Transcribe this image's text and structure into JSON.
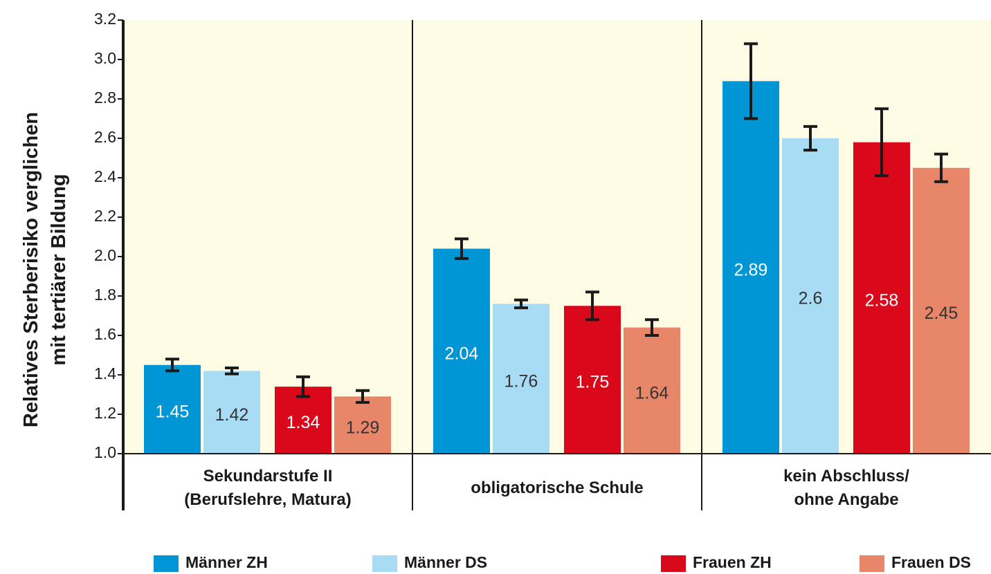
{
  "chart_data": {
    "type": "bar",
    "ylabel": "Relatives Sterberisiko verglichen\nmit tertiärer Bildung",
    "categories": [
      "Sekundarstufe II\n(Berufslehre, Matura)",
      "obligatorische Schule",
      "kein Abschluss/\nohne Angabe"
    ],
    "series": [
      {
        "name": "Männer ZH",
        "color": "#0096d6",
        "label_color": "#ffffff",
        "values": [
          1.45,
          2.04,
          2.89
        ],
        "errors": [
          0.03,
          0.05,
          0.19
        ]
      },
      {
        "name": "Männer DS",
        "color": "#a8dcf4",
        "label_color": "#333333",
        "values": [
          1.42,
          1.76,
          2.6
        ],
        "errors": [
          0.015,
          0.02,
          0.06
        ]
      },
      {
        "name": "Frauen ZH",
        "color": "#d9091b",
        "label_color": "#ffffff",
        "values": [
          1.34,
          1.75,
          2.58
        ],
        "errors": [
          0.05,
          0.07,
          0.17
        ]
      },
      {
        "name": "Frauen DS",
        "color": "#e8866a",
        "label_color": "#333333",
        "values": [
          1.29,
          1.64,
          2.45
        ],
        "errors": [
          0.03,
          0.04,
          0.07
        ]
      }
    ],
    "ylim": [
      1.0,
      3.2
    ],
    "yticks": [
      {
        "value": 1.0,
        "label": "1.0"
      },
      1.2,
      1.4,
      1.6,
      1.8,
      {
        "value": 2.0,
        "label": "2.0"
      },
      2.2,
      2.4,
      2.6,
      2.8,
      {
        "value": 3.0,
        "label": "3.0"
      },
      3.2
    ],
    "background": "#fdfbe3"
  }
}
